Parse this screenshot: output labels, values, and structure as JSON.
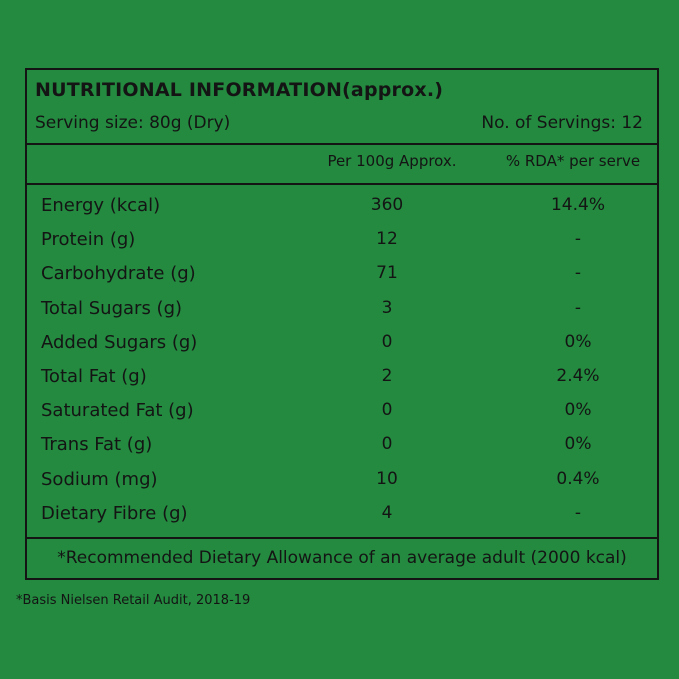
{
  "header": {
    "title": "NUTRITIONAL INFORMATION(approx.)",
    "serving_size": "Serving size: 80g (Dry)",
    "servings": "No. of Servings: 12"
  },
  "table": {
    "columns": [
      "Per 100g Approx.",
      "% RDA* per serve"
    ],
    "rows": [
      [
        "Energy (kcal)",
        "360",
        "14.4%"
      ],
      [
        "Protein (g)",
        "12",
        "-"
      ],
      [
        "Carbohydrate (g)",
        "71",
        "-"
      ],
      [
        "Total Sugars (g)",
        "3",
        "-"
      ],
      [
        "Added Sugars (g)",
        "0",
        "0%"
      ],
      [
        "Total Fat (g)",
        "2",
        "2.4%"
      ],
      [
        "Saturated Fat (g)",
        "0",
        "0%"
      ],
      [
        "Trans Fat (g)",
        "0",
        "0%"
      ],
      [
        "Sodium (mg)",
        "10",
        "0.4%"
      ],
      [
        "Dietary Fibre (g)",
        "4",
        "-"
      ]
    ],
    "footnote": "*Recommended Dietary Allowance of an average adult (2000 kcal)"
  },
  "source_note": "*Basis Nielsen Retail Audit, 2018-19"
}
